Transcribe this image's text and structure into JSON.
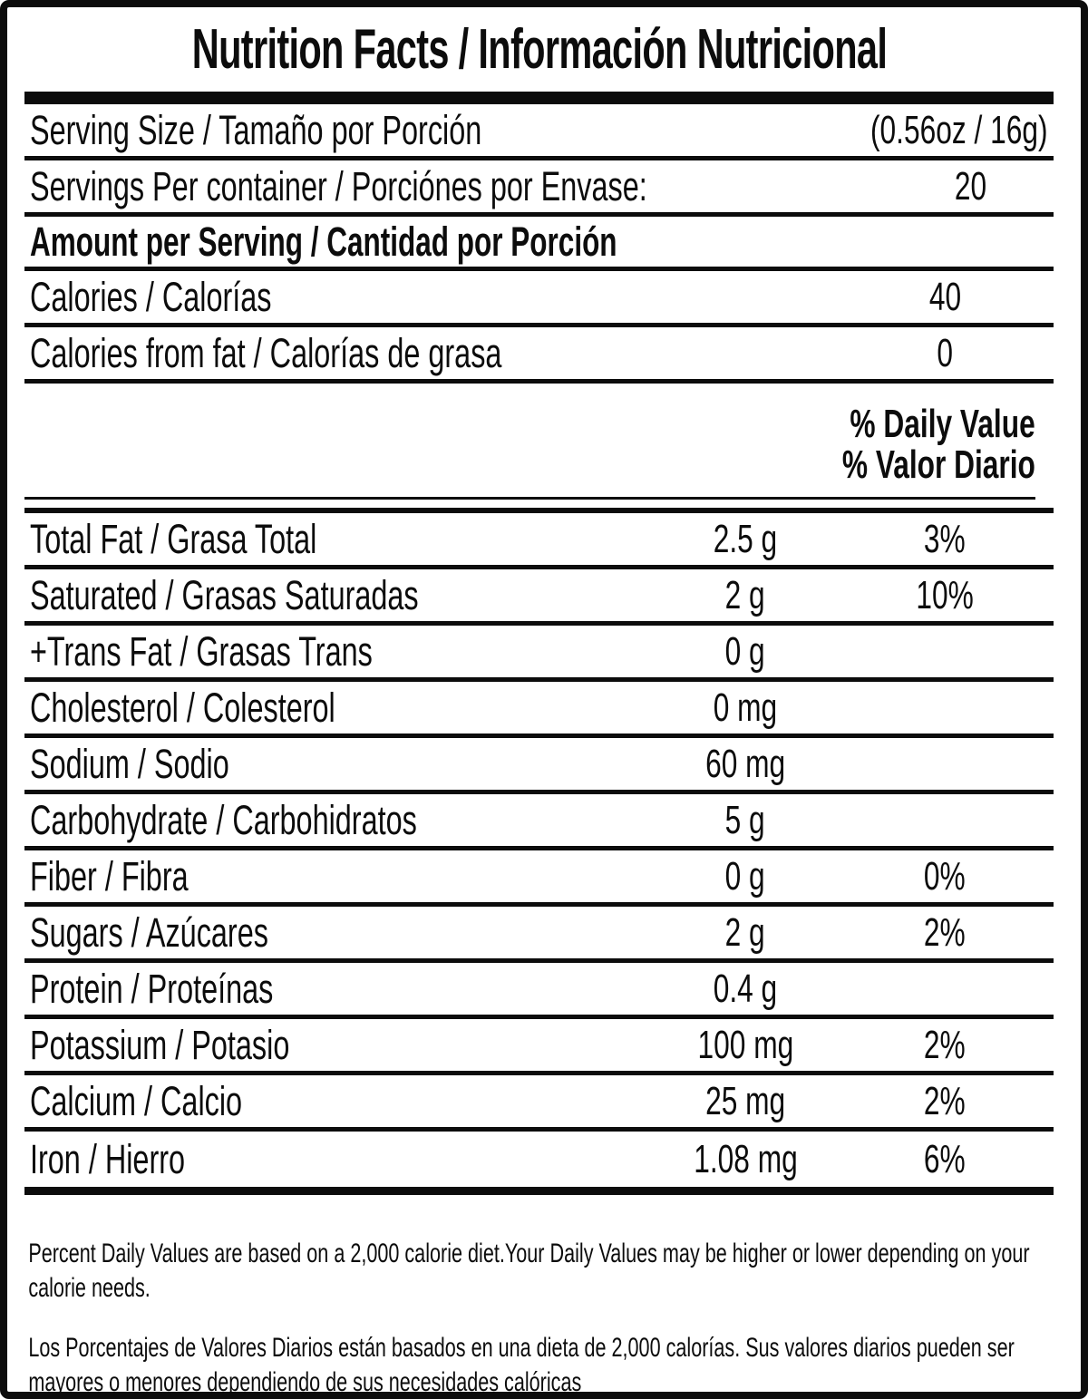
{
  "label": {
    "title": "Nutrition Facts / Información Nutricional",
    "serving_rows": [
      {
        "label": "Serving Size / Tamaño por Porción",
        "value": "(0.56oz / 16g)"
      },
      {
        "label": "Servings Per container / Porciónes por Envase:",
        "value": "20"
      }
    ],
    "amount_header": "Amount per Serving / Cantidad por Porción",
    "calorie_rows": [
      {
        "label": "Calories / Calorías",
        "value": "40"
      },
      {
        "label": "Calories from fat / Calorías de grasa",
        "value": "0"
      }
    ],
    "daily_value_header": {
      "line1": "% Daily Value",
      "line2": "% Valor Diario"
    },
    "nutrient_rows": [
      {
        "label": "Total Fat / Grasa Total",
        "amount": "2.5 g",
        "dv": "3%"
      },
      {
        "label": "Saturated / Grasas Saturadas",
        "amount": "2 g",
        "dv": "10%"
      },
      {
        "label": "+Trans Fat / Grasas Trans",
        "amount": "0 g",
        "dv": ""
      },
      {
        "label": "Cholesterol / Colesterol",
        "amount": "0 mg",
        "dv": ""
      },
      {
        "label": "Sodium / Sodio",
        "amount": "60 mg",
        "dv": ""
      },
      {
        "label": "Carbohydrate / Carbohidratos",
        "amount": "5 g",
        "dv": ""
      },
      {
        "label": "Fiber / Fibra",
        "amount": "0 g",
        "dv": "0%"
      },
      {
        "label": "Sugars / Azúcares",
        "amount": "2 g",
        "dv": "2%"
      },
      {
        "label": "Protein / Proteínas",
        "amount": "0.4 g",
        "dv": ""
      },
      {
        "label": "Potassium / Potasio",
        "amount": "100 mg",
        "dv": "2%"
      },
      {
        "label": "Calcium / Calcio",
        "amount": "25 mg",
        "dv": "2%"
      },
      {
        "label": "Iron / Hierro",
        "amount": "1.08 mg",
        "dv": "6%"
      }
    ],
    "footnotes": [
      "Percent Daily Values are based on a 2,000 calorie diet.Your Daily Values may be higher or lower depending on your calorie needs.",
      "Los Porcentajes de Valores Diarios están basados en una dieta de 2,000 calorías. Sus valores diarios pueden ser mayores o menores dependiendo de sus necesidades calóricas"
    ],
    "colors": {
      "ink": "#0c0c0c",
      "background": "#ffffff"
    }
  }
}
